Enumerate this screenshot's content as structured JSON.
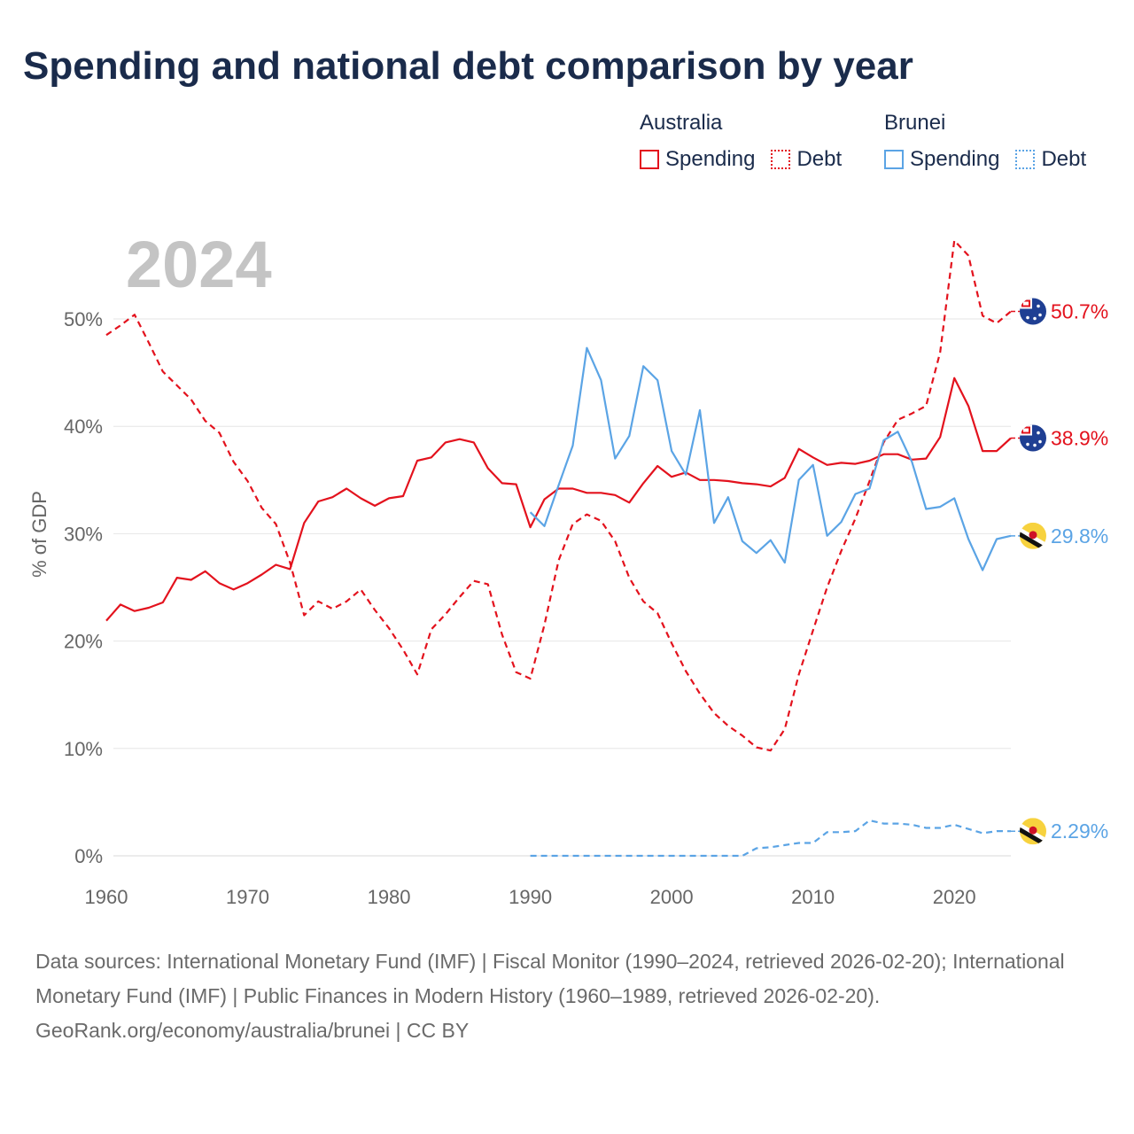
{
  "title": "Spending and national debt comparison by year",
  "legend": {
    "groups": [
      {
        "country": "Australia",
        "spending_label": "Spending",
        "debt_label": "Debt",
        "color": "#e3121d"
      },
      {
        "country": "Brunei",
        "spending_label": "Spending",
        "debt_label": "Debt",
        "color": "#5ba4e5"
      }
    ]
  },
  "year_label": "2024",
  "chart_data": {
    "type": "line",
    "title": "Spending and national debt comparison by year",
    "xlabel": "",
    "ylabel": "% of GDP",
    "xlim": [
      1960,
      2024
    ],
    "ylim": [
      0,
      55
    ],
    "x_ticks": [
      1960,
      1970,
      1980,
      1990,
      2000,
      2010,
      2020
    ],
    "y_ticks": [
      0,
      10,
      20,
      30,
      40,
      50
    ],
    "y_tick_labels": [
      "0%",
      "10%",
      "20%",
      "30%",
      "40%",
      "50%"
    ],
    "grid": true,
    "series": [
      {
        "name": "Australia Spending",
        "country": "Australia",
        "style": "solid",
        "color": "#e3121d",
        "end_label": "38.9%",
        "flag": "australia-flag",
        "x": [
          1960,
          1961,
          1962,
          1963,
          1964,
          1965,
          1966,
          1967,
          1968,
          1969,
          1970,
          1971,
          1972,
          1973,
          1974,
          1975,
          1976,
          1977,
          1978,
          1979,
          1980,
          1981,
          1982,
          1983,
          1984,
          1985,
          1986,
          1987,
          1988,
          1989,
          1990,
          1991,
          1992,
          1993,
          1994,
          1995,
          1996,
          1997,
          1998,
          1999,
          2000,
          2001,
          2002,
          2003,
          2004,
          2005,
          2006,
          2007,
          2008,
          2009,
          2010,
          2011,
          2012,
          2013,
          2014,
          2015,
          2016,
          2017,
          2018,
          2019,
          2020,
          2021,
          2022,
          2023,
          2024
        ],
        "values": [
          21.9,
          23.4,
          22.8,
          23.1,
          23.6,
          25.9,
          25.7,
          26.5,
          25.4,
          24.8,
          25.4,
          26.2,
          27.1,
          26.7,
          31.0,
          33.0,
          33.4,
          34.2,
          33.3,
          32.6,
          33.3,
          33.5,
          36.8,
          37.1,
          38.5,
          38.8,
          38.5,
          36.1,
          34.7,
          34.6,
          30.6,
          33.2,
          34.2,
          34.2,
          33.8,
          33.8,
          33.6,
          32.9,
          34.7,
          36.3,
          35.3,
          35.7,
          35.0,
          35.0,
          34.9,
          34.7,
          34.6,
          34.4,
          35.2,
          37.9,
          37.1,
          36.4,
          36.6,
          36.5,
          36.8,
          37.4,
          37.4,
          36.9,
          37.0,
          39.0,
          44.5,
          41.9,
          37.7,
          37.7,
          38.9
        ]
      },
      {
        "name": "Australia Debt",
        "country": "Australia",
        "style": "dashed",
        "color": "#e3121d",
        "end_label": "50.7%",
        "flag": "australia-flag",
        "x": [
          1960,
          1961,
          1962,
          1963,
          1964,
          1965,
          1966,
          1967,
          1968,
          1969,
          1970,
          1971,
          1972,
          1973,
          1974,
          1975,
          1976,
          1977,
          1978,
          1979,
          1980,
          1981,
          1982,
          1983,
          1984,
          1985,
          1986,
          1987,
          1988,
          1989,
          1990,
          1991,
          1992,
          1993,
          1994,
          1995,
          1996,
          1997,
          1998,
          1999,
          2000,
          2001,
          2002,
          2003,
          2004,
          2005,
          2006,
          2007,
          2008,
          2009,
          2010,
          2011,
          2012,
          2013,
          2014,
          2015,
          2016,
          2017,
          2018,
          2019,
          2020,
          2021,
          2022,
          2023,
          2024
        ],
        "values": [
          48.5,
          49.4,
          50.4,
          47.8,
          45.1,
          43.8,
          42.5,
          40.5,
          39.4,
          36.7,
          34.9,
          32.4,
          30.9,
          27.3,
          22.4,
          23.7,
          23.0,
          23.7,
          24.8,
          22.9,
          21.2,
          19.2,
          16.9,
          21.1,
          22.5,
          24.1,
          25.6,
          25.3,
          20.6,
          17.1,
          16.5,
          21.5,
          27.5,
          30.9,
          31.8,
          31.2,
          29.3,
          25.9,
          23.7,
          22.6,
          19.8,
          17.2,
          15.1,
          13.3,
          12.1,
          11.2,
          10.1,
          9.8,
          11.8,
          16.9,
          21.0,
          25.0,
          28.4,
          31.4,
          34.9,
          38.5,
          40.6,
          41.2,
          41.9,
          46.9,
          57.3,
          55.9,
          50.3,
          49.6,
          50.7
        ]
      },
      {
        "name": "Brunei Spending",
        "country": "Brunei",
        "style": "solid",
        "color": "#5ba4e5",
        "end_label": "29.8%",
        "flag": "brunei-flag",
        "x": [
          1990,
          1991,
          1992,
          1993,
          1994,
          1995,
          1996,
          1997,
          1998,
          1999,
          2000,
          2001,
          2002,
          2003,
          2004,
          2005,
          2006,
          2007,
          2008,
          2009,
          2010,
          2011,
          2012,
          2013,
          2014,
          2015,
          2016,
          2017,
          2018,
          2019,
          2020,
          2021,
          2022,
          2023,
          2024
        ],
        "values": [
          32.0,
          30.7,
          34.5,
          38.2,
          47.3,
          44.3,
          37.0,
          39.1,
          45.6,
          44.3,
          37.7,
          35.5,
          41.5,
          31.0,
          33.4,
          29.3,
          28.2,
          29.4,
          27.3,
          35.0,
          36.4,
          29.8,
          31.1,
          33.7,
          34.2,
          38.7,
          39.5,
          36.7,
          32.3,
          32.5,
          33.3,
          29.5,
          26.6,
          29.5,
          29.8
        ]
      },
      {
        "name": "Brunei Debt",
        "country": "Brunei",
        "style": "dashed",
        "color": "#5ba4e5",
        "end_label": "2.29%",
        "flag": "brunei-flag",
        "x": [
          1990,
          1991,
          1992,
          1993,
          1994,
          1995,
          1996,
          1997,
          1998,
          1999,
          2000,
          2001,
          2002,
          2003,
          2004,
          2005,
          2006,
          2007,
          2008,
          2009,
          2010,
          2011,
          2012,
          2013,
          2014,
          2015,
          2016,
          2017,
          2018,
          2019,
          2020,
          2021,
          2022,
          2023,
          2024
        ],
        "values": [
          0,
          0,
          0,
          0,
          0,
          0,
          0,
          0,
          0,
          0,
          0,
          0,
          0,
          0,
          0,
          0,
          0.7,
          0.8,
          1.0,
          1.2,
          1.2,
          2.2,
          2.2,
          2.3,
          3.3,
          3.0,
          3.0,
          2.9,
          2.6,
          2.6,
          2.9,
          2.5,
          2.1,
          2.3,
          2.29
        ]
      }
    ]
  },
  "footer": {
    "sources": "Data sources: International Monetary Fund (IMF) | Fiscal Monitor (1990–2024, retrieved 2026-02-20); International Monetary Fund (IMF) | Public Finances in Modern History (1960–1989, retrieved 2026-02-20).",
    "credit": "GeoRank.org/economy/australia/brunei | CC BY"
  }
}
